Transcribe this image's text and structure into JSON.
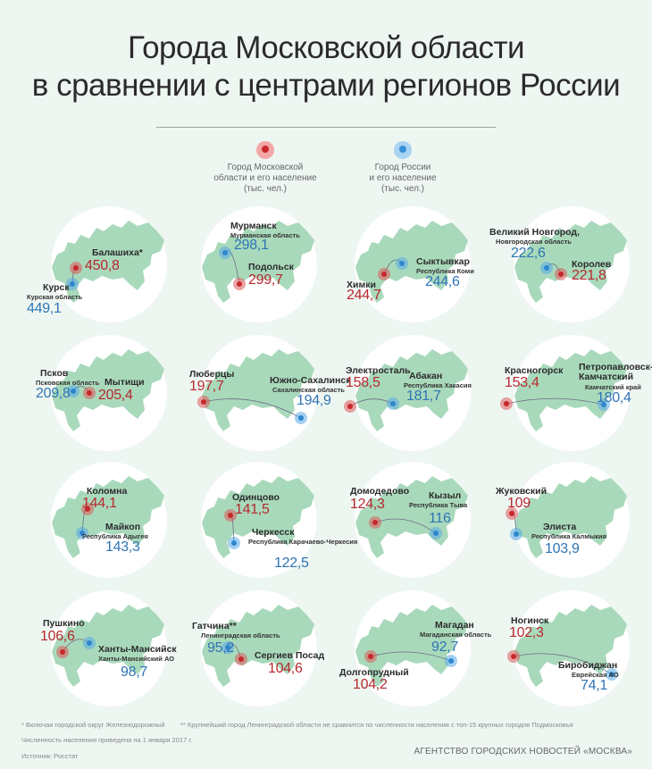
{
  "title": {
    "line1": "Города Московской области",
    "line2": "в сравнении с центрами регионов России"
  },
  "legend": {
    "moscow_region": {
      "line1": "Город Московской",
      "line2": "области и его население",
      "line3": "(тыс. чел.)",
      "color": "#c8282c"
    },
    "russia": {
      "line1": "Город России",
      "line2": "и его население",
      "line3": "(тыс. чел.)",
      "color": "#3a8fd6"
    }
  },
  "colors": {
    "moscow_value": "#b5292e",
    "russia_value": "#2f74b5",
    "map": "#a9d9bb",
    "background": "#eef6f1"
  },
  "cards": [
    {
      "m_name": "Балашиха*",
      "m_value": "450,8",
      "r_name": "Курск",
      "r_region": "Курская область",
      "r_value": "449,1"
    },
    {
      "m_name": "Подольск",
      "m_value": "299,7",
      "r_name": "Мурманск",
      "r_region": "Мурманская область",
      "r_value": "298,1"
    },
    {
      "m_name": "Химки",
      "m_value": "244,7",
      "r_name": "Сыктывкар",
      "r_region": "Республика Коми",
      "r_value": "244,6"
    },
    {
      "m_name": "Королев",
      "m_value": "221,8",
      "r_name": "Великий Новгород,",
      "r_region": "Новгородская область",
      "r_value": "222,6"
    },
    {
      "m_name": "Мытищи",
      "m_value": "205,4",
      "r_name": "Псков",
      "r_region": "Псковская область",
      "r_value": "209,8"
    },
    {
      "m_name": "Люберцы",
      "m_value": "197,7",
      "r_name": "Южно-Сахалинск",
      "r_region": "Сахалинская область",
      "r_value": "194,9"
    },
    {
      "m_name": "Электросталь",
      "m_value": "158,5",
      "r_name": "Абакан",
      "r_region": "Республика Хакасия",
      "r_value": "181,7"
    },
    {
      "m_name": "Красногорск",
      "m_value": "153,4",
      "r_name": "Петропавловск-Камчатский",
      "r_region": "Камчатский край",
      "r_value": "180,4"
    },
    {
      "m_name": "Коломна",
      "m_value": "144,1",
      "r_name": "Майкоп",
      "r_region": "Республика Адыгея",
      "r_value": "143,3"
    },
    {
      "m_name": "Одинцово",
      "m_value": "141,5",
      "r_name": "Черкесск",
      "r_region": "Республика Карачаево-Черкесия",
      "r_value": "122,5"
    },
    {
      "m_name": "Домодедово",
      "m_value": "124,3",
      "r_name": "Кызыл",
      "r_region": "Республика Тыва",
      "r_value": "116"
    },
    {
      "m_name": "Жуковский",
      "m_value": "109",
      "r_name": "Элиста",
      "r_region": "Республика Калмыкия",
      "r_value": "103,9"
    },
    {
      "m_name": "Пушкино",
      "m_value": "106,6",
      "r_name": "Ханты-Мансийск",
      "r_region": "Ханты-Мансийский АО",
      "r_value": "98,7"
    },
    {
      "m_name": "Сергиев Посад",
      "m_value": "104,6",
      "r_name": "Гатчина**",
      "r_region": "Ленинградская область",
      "r_value": "95,2"
    },
    {
      "m_name": "Долгопрудный",
      "m_value": "104,2",
      "r_name": "Магадан",
      "r_region": "Магаданская область",
      "r_value": "92,7"
    },
    {
      "m_name": "Ногинск",
      "m_value": "102,3",
      "r_name": "Биробиджан",
      "r_region": "Еврейская АО",
      "r_value": "74,1"
    }
  ],
  "footnotes": {
    "note1": "* Включая городской округ Железнодорожный",
    "note2": "** Крупнейший город Ленинградской области не сравнится по численности населения с топ-15 крупных городов Подмосковья",
    "date_note": "Численность населения приведена на 1 января 2017 г.",
    "source": "Источник: Росстат",
    "agency": "АГЕНТСТВО ГОРОДСКИХ НОВОСТЕЙ «МОСКВА»"
  }
}
